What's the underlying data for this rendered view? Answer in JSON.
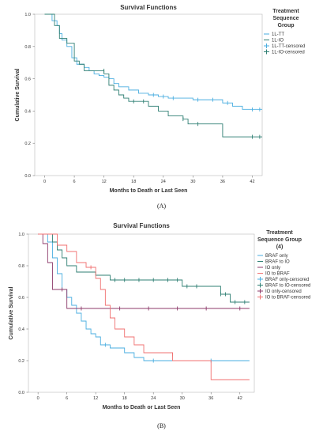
{
  "panels": [
    {
      "label": "(A)",
      "legend": {
        "title_lines": [
          "Treatment",
          "Sequence",
          "Group"
        ],
        "items": [
          {
            "label": "1L-TT",
            "color": "#4aaee0",
            "kind": "line"
          },
          {
            "label": "1L-IO",
            "color": "#2f7f73",
            "kind": "line"
          },
          {
            "label": "1L-TT-censored",
            "color": "#4aaee0",
            "kind": "censor"
          },
          {
            "label": "1L-IO-censored",
            "color": "#2f7f73",
            "kind": "censor"
          }
        ]
      }
    },
    {
      "label": "(B)",
      "legend": {
        "title_lines": [
          "Treatment",
          "Sequence Group",
          "(4)"
        ],
        "items": [
          {
            "label": "BRAF only",
            "color": "#4aaee0",
            "kind": "line"
          },
          {
            "label": "BRAF to IO",
            "color": "#2f7f73",
            "kind": "line"
          },
          {
            "label": "IO only",
            "color": "#8c3a6a",
            "kind": "line"
          },
          {
            "label": "IO to BRAF",
            "color": "#f07070",
            "kind": "line"
          },
          {
            "label": "BRAF only-censored",
            "color": "#4aaee0",
            "kind": "censor"
          },
          {
            "label": "BRAF to IO-censored",
            "color": "#2f7f73",
            "kind": "censor"
          },
          {
            "label": "IO only-censored",
            "color": "#8c3a6a",
            "kind": "censor"
          },
          {
            "label": "IO to BRAF-censored",
            "color": "#f07070",
            "kind": "censor"
          }
        ]
      }
    }
  ],
  "chart_data": [
    {
      "type": "line",
      "step": true,
      "title": "Survival Functions",
      "xlabel": "Months to Death or Last Seen",
      "ylabel": "Cumulative Survival",
      "xlim": [
        -2,
        44
      ],
      "ylim": [
        0,
        1.0
      ],
      "xticks": [
        0,
        6,
        12,
        18,
        24,
        30,
        36,
        42
      ],
      "yticks": [
        0.0,
        0.2,
        0.4,
        0.6,
        0.8,
        1.0
      ],
      "series": [
        {
          "name": "1L-TT",
          "color": "#4aaee0",
          "x": [
            0,
            1.5,
            2.5,
            3,
            3.5,
            4.5,
            5.5,
            6.5,
            8,
            9,
            10,
            11,
            12,
            13,
            14,
            15,
            17,
            19,
            21,
            23,
            25,
            30,
            36,
            38,
            40,
            44
          ],
          "y": [
            1.0,
            0.96,
            0.93,
            0.88,
            0.84,
            0.8,
            0.73,
            0.69,
            0.67,
            0.65,
            0.63,
            0.62,
            0.61,
            0.6,
            0.57,
            0.55,
            0.53,
            0.51,
            0.5,
            0.49,
            0.48,
            0.47,
            0.45,
            0.43,
            0.41,
            0.41
          ],
          "censored": [
            [
              22,
              0.5
            ],
            [
              24,
              0.49
            ],
            [
              26,
              0.48
            ],
            [
              31,
              0.47
            ],
            [
              34,
              0.47
            ],
            [
              37,
              0.45
            ],
            [
              42,
              0.41
            ],
            [
              43.5,
              0.41
            ]
          ]
        },
        {
          "name": "1L-IO",
          "color": "#2f7f73",
          "x": [
            0,
            2,
            3,
            4.5,
            6,
            7,
            8,
            12,
            13,
            14,
            15,
            16,
            17,
            21,
            23,
            25,
            28,
            29,
            36,
            44
          ],
          "y": [
            1.0,
            0.93,
            0.85,
            0.82,
            0.71,
            0.69,
            0.65,
            0.63,
            0.56,
            0.53,
            0.5,
            0.48,
            0.46,
            0.43,
            0.4,
            0.37,
            0.35,
            0.32,
            0.24,
            0.24
          ],
          "censored": [
            [
              12,
              0.65
            ],
            [
              18,
              0.46
            ],
            [
              20,
              0.46
            ],
            [
              28,
              0.35
            ],
            [
              31,
              0.32
            ],
            [
              42,
              0.24
            ],
            [
              43.5,
              0.24
            ]
          ]
        }
      ]
    },
    {
      "type": "line",
      "step": true,
      "title": "Survival Functions",
      "xlabel": "Months to Death or Last Seen",
      "ylabel": "Cumulative Survival",
      "xlim": [
        -2,
        45
      ],
      "ylim": [
        0,
        1.0
      ],
      "xticks": [
        0,
        6,
        12,
        18,
        24,
        30,
        36,
        42
      ],
      "yticks": [
        0.0,
        0.2,
        0.4,
        0.6,
        0.8,
        1.0
      ],
      "series": [
        {
          "name": "BRAF only",
          "color": "#4aaee0",
          "x": [
            0,
            2,
            3,
            4,
            5,
            6,
            7,
            8,
            9,
            10,
            11,
            12,
            13,
            15,
            18,
            20,
            22,
            44
          ],
          "y": [
            1.0,
            0.95,
            0.85,
            0.75,
            0.65,
            0.6,
            0.55,
            0.5,
            0.45,
            0.4,
            0.37,
            0.35,
            0.3,
            0.28,
            0.25,
            0.22,
            0.2,
            0.2
          ],
          "censored": [
            [
              14,
              0.3
            ],
            [
              24,
              0.2
            ],
            [
              36,
              0.2
            ]
          ]
        },
        {
          "name": "BRAF to IO",
          "color": "#2f7f73",
          "x": [
            0,
            3,
            4,
            5,
            6,
            8,
            12,
            15,
            30,
            38,
            40,
            44
          ],
          "y": [
            1.0,
            0.95,
            0.9,
            0.85,
            0.8,
            0.76,
            0.74,
            0.71,
            0.67,
            0.62,
            0.57,
            0.57
          ],
          "censored": [
            [
              16,
              0.71
            ],
            [
              18,
              0.71
            ],
            [
              21,
              0.71
            ],
            [
              24,
              0.71
            ],
            [
              27,
              0.71
            ],
            [
              29,
              0.71
            ],
            [
              31,
              0.67
            ],
            [
              33,
              0.67
            ],
            [
              38,
              0.62
            ],
            [
              39,
              0.62
            ],
            [
              41,
              0.57
            ],
            [
              43,
              0.57
            ]
          ]
        },
        {
          "name": "IO only",
          "color": "#8c3a6a",
          "x": [
            0,
            1,
            2,
            3,
            6,
            44
          ],
          "y": [
            1.0,
            0.94,
            0.82,
            0.65,
            0.53,
            0.53
          ],
          "censored": [
            [
              5,
              0.65
            ],
            [
              9,
              0.53
            ],
            [
              17,
              0.53
            ],
            [
              23,
              0.53
            ],
            [
              29,
              0.53
            ],
            [
              35,
              0.53
            ],
            [
              42,
              0.53
            ]
          ]
        },
        {
          "name": "IO to BRAF",
          "color": "#f07070",
          "x": [
            0,
            4,
            6,
            8,
            10,
            12,
            13,
            14,
            15,
            16,
            18,
            20,
            22,
            28,
            36,
            44
          ],
          "y": [
            1.0,
            0.93,
            0.89,
            0.82,
            0.79,
            0.72,
            0.65,
            0.55,
            0.47,
            0.4,
            0.35,
            0.3,
            0.25,
            0.2,
            0.08,
            0.08
          ],
          "censored": [
            [
              11,
              0.79
            ],
            [
              28,
              0.24
            ]
          ]
        }
      ]
    }
  ]
}
